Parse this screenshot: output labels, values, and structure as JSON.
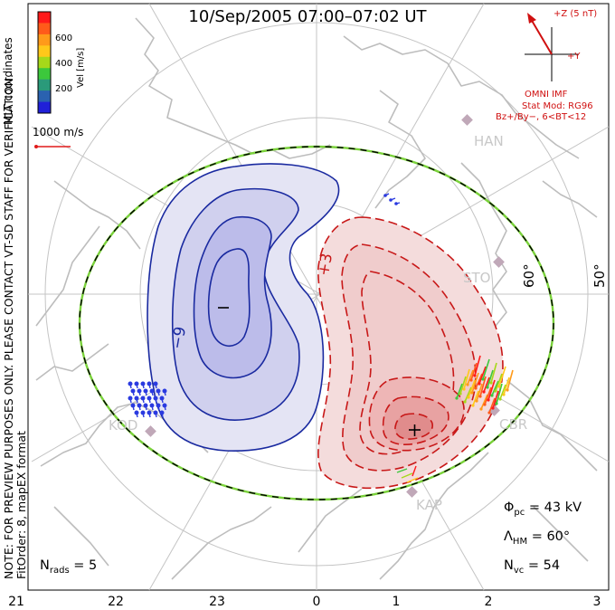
{
  "title": "10/Sep/2005 07:00–07:02 UT",
  "colorbar": {
    "label": "Vel [m/s]",
    "ticks": [
      "600",
      "400",
      "200"
    ],
    "colors": [
      "#ff1a1a",
      "#ff5a1a",
      "#ff9a1a",
      "#ffc81a",
      "#a6d81a",
      "#3cc83c",
      "#2a9a7a",
      "#2a62b0",
      "#2020d8"
    ]
  },
  "scale_vector": {
    "label": "1000 m/s"
  },
  "coordinates_label": "MLT coordinates",
  "imf": {
    "bz_label": "+Z (5 nT)",
    "by_label": "+Y",
    "source": "OMNI IMF",
    "model": "Stat Mod: RG96",
    "model_bin": "Bz+/By−, 6<BT<12"
  },
  "stations": [
    "HAN",
    "STO",
    "CBR",
    "KAP",
    "KOD"
  ],
  "latitude_labels": [
    "60°",
    "50°"
  ],
  "contours": {
    "negative_label": "−9",
    "positive_label": "+3",
    "min_marker": "−",
    "max_marker": "+"
  },
  "note": {
    "line1": "NOTE: FOR PREVIEW PURPOSES ONLY. PLEASE CONTACT VT-SD STAFF FOR VERIFICATION.",
    "line2": "FitOrder: 8, mapEX format"
  },
  "stats": {
    "phi_pc_symbol": "Φ",
    "phi_pc_sub": "pc",
    "phi_pc_value": "= 43 kV",
    "lambda_hm_symbol": "Λ",
    "lambda_hm_sub": "HM",
    "lambda_hm_value": "= 60°",
    "n_vc_symbol": "N",
    "n_vc_sub": "vc",
    "n_vc_value": "= 54",
    "n_rads_symbol": "N",
    "n_rads_sub": "rads",
    "n_rads_value": "= 5"
  },
  "mlt_axis": [
    "21",
    "22",
    "23",
    "0",
    "1",
    "2",
    "3"
  ],
  "style": {
    "coast_color": "#bdbdbd",
    "grid_color": "#c4c4c4",
    "negative_fill": "#c8c8ee",
    "negative_line": "#1a2aa0",
    "positive_fill": "#f2c2c2",
    "positive_line": "#c81818",
    "boundary_green": "#7ad23a"
  }
}
